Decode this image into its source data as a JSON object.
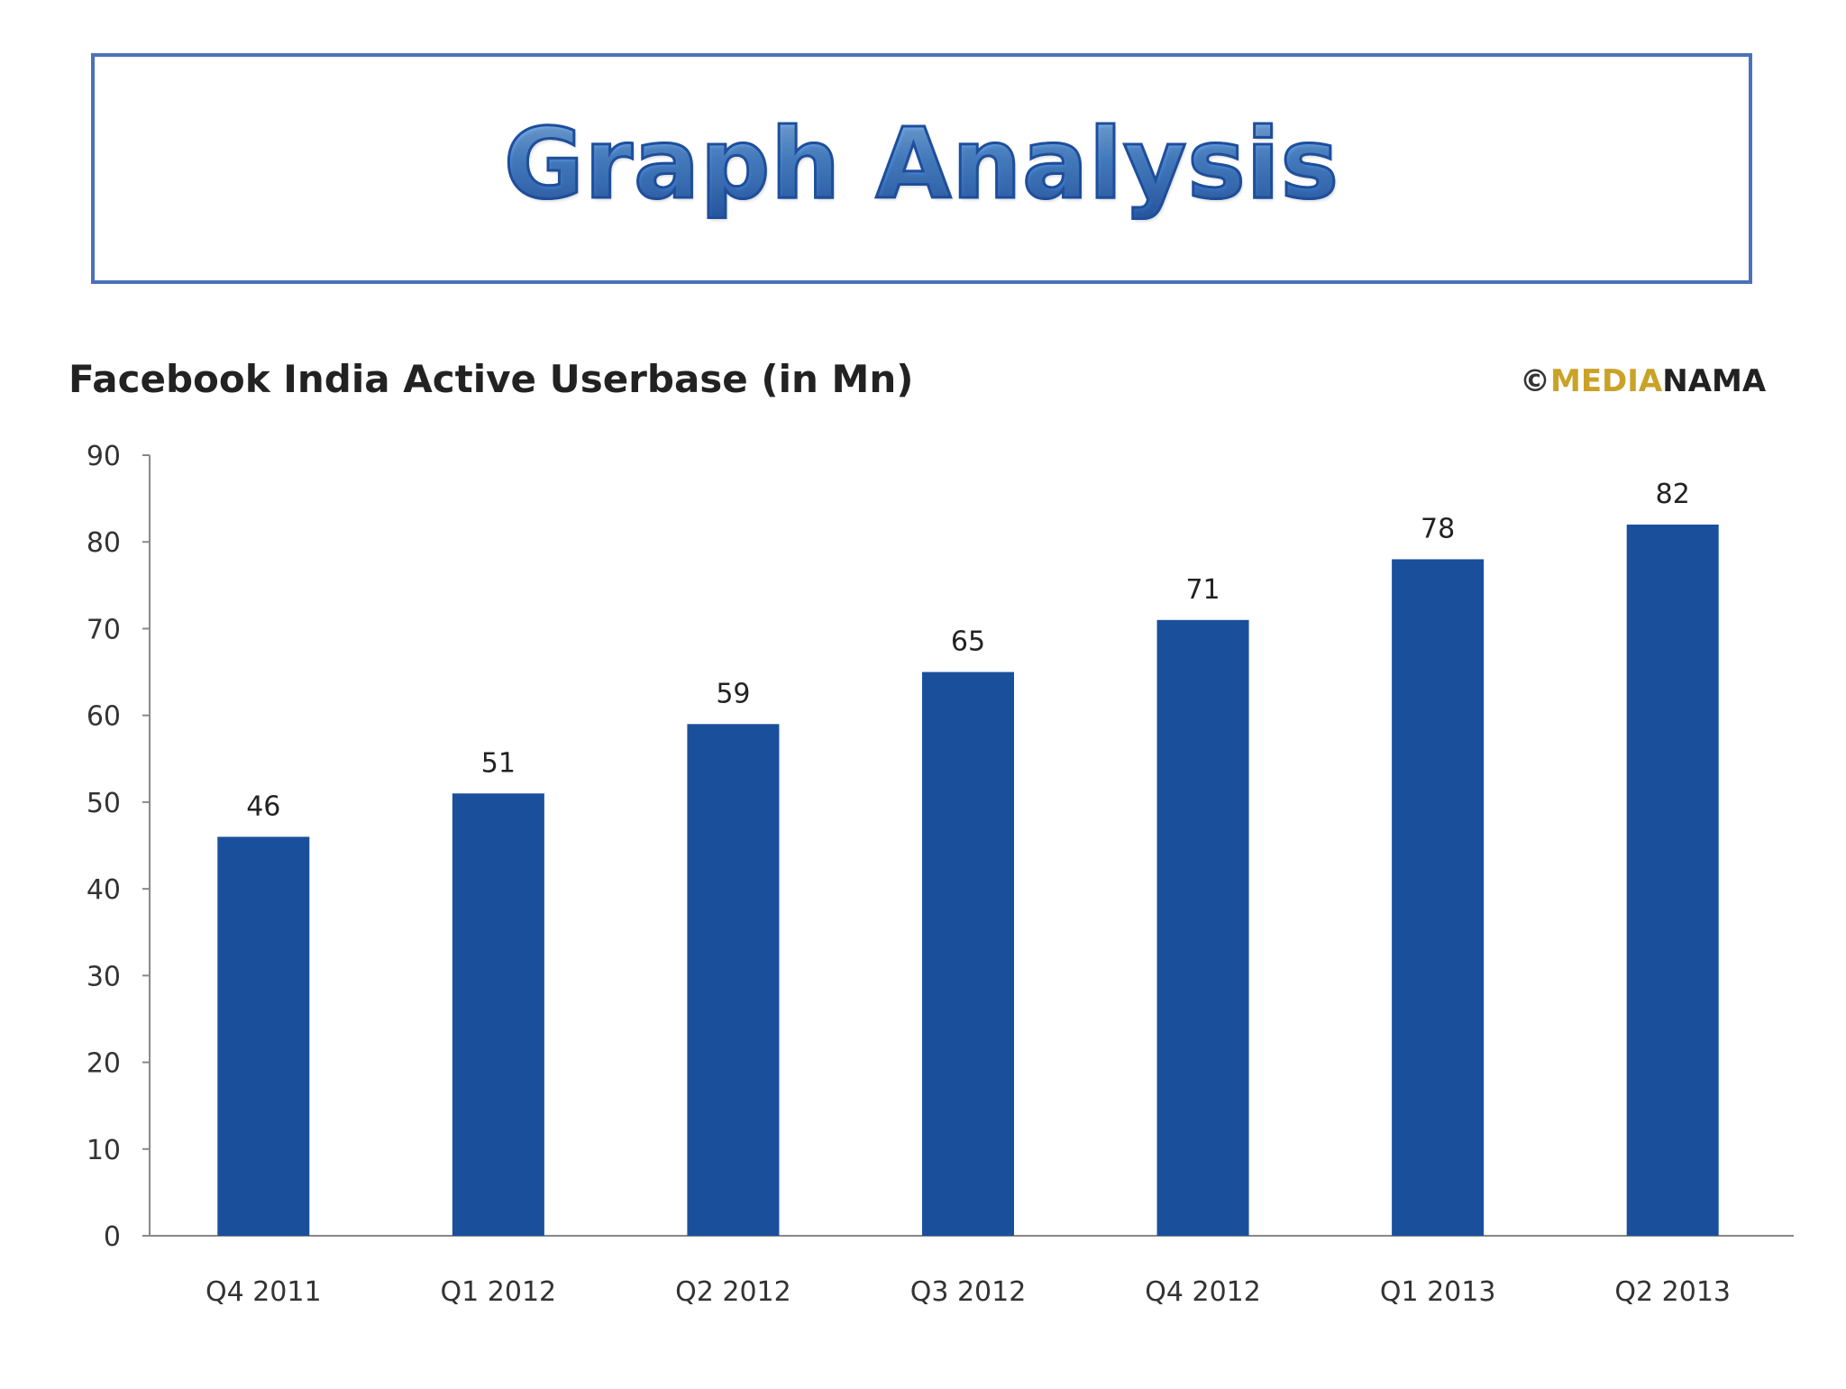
{
  "slide": {
    "title": "Graph Analysis"
  },
  "watermark": {
    "symbol": "©",
    "part1": "MEDIA",
    "part2": "NAMA",
    "color1": "#c9a227",
    "color2": "#222222"
  },
  "chart_data": {
    "type": "bar",
    "title": "Facebook India Active Userbase (in Mn)",
    "categories": [
      "Q4 2011",
      "Q1 2012",
      "Q2 2012",
      "Q3 2012",
      "Q4 2012",
      "Q1 2013",
      "Q2 2013"
    ],
    "values": [
      46,
      51,
      59,
      65,
      71,
      78,
      82
    ],
    "data_labels": [
      "46",
      "51",
      "59",
      "65",
      "71",
      "78",
      "82"
    ],
    "xlabel": "",
    "ylabel": "",
    "ylim": [
      0,
      90
    ],
    "yticks": [
      0,
      10,
      20,
      30,
      40,
      50,
      60,
      70,
      80,
      90
    ],
    "ytick_labels": [
      "0",
      "10",
      "20",
      "30",
      "40",
      "50",
      "60",
      "70",
      "80",
      "90"
    ],
    "grid": false,
    "legend": "none",
    "bar_color": "#1a4f9c"
  }
}
